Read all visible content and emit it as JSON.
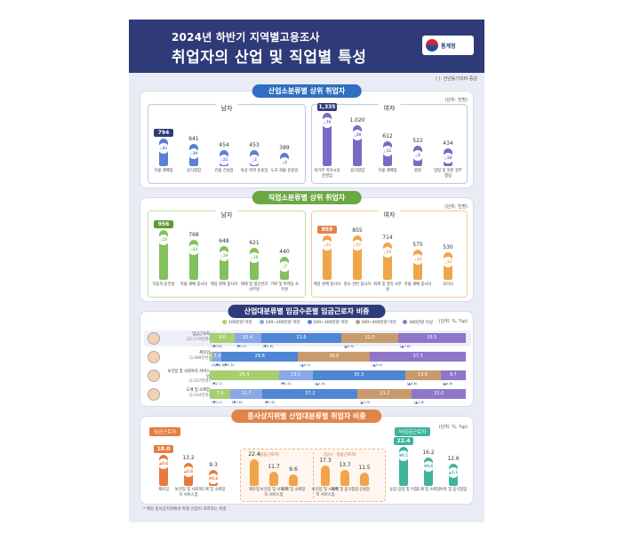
{
  "header": {
    "line1": "2024년 하반기 지역별고용조사",
    "line2": "취업자의 산업 및 직업별 특성",
    "logo_text": "통계청"
  },
  "note": "( ): 전년동기대비 증감",
  "colors": {
    "navy": "#2f3a78",
    "blue": "#5b7fd6",
    "purple": "#7a6ac4",
    "green": "#83c05e",
    "orange": "#f1a54a",
    "teal": "#3eb59a"
  },
  "industry": {
    "title": "산업소분류별 상위 취업자",
    "unit": "(단위: 천명)",
    "male": {
      "label": "남자",
      "items": [
        {
          "cat": "직물 제매업",
          "value": "794",
          "chg": "△41"
        },
        {
          "cat": "음식점업",
          "value": "641",
          "chg": "△30"
        },
        {
          "cat": "건물 건설업",
          "value": "454",
          "chg": "△22"
        },
        {
          "cat": "육상 여객 운송업",
          "value": "453",
          "chg": "△2"
        },
        {
          "cat": "도로 화물 운송업",
          "value": "389",
          "chg": "△3"
        }
      ]
    },
    "female": {
      "label": "여자",
      "items": [
        {
          "cat": "비거주 복지시설 운영업",
          "value": "1,335",
          "chg": "△70"
        },
        {
          "cat": "음식점업",
          "value": "1,020",
          "chg": "△30"
        },
        {
          "cat": "직물 제매업",
          "value": "612",
          "chg": "△11"
        },
        {
          "cat": "병원",
          "value": "522",
          "chg": "△5"
        },
        {
          "cat": "입법 및 일반 정부 행정",
          "value": "434",
          "chg": "△18"
        }
      ]
    },
    "chart_data": {
      "type": "bar",
      "series": [
        {
          "name": "남자",
          "categories": [
            "직물 제매업",
            "음식점업",
            "건물 건설업",
            "육상 여객 운송업",
            "도로 화물 운송업"
          ],
          "values": [
            794,
            641,
            454,
            453,
            389
          ]
        },
        {
          "name": "여자",
          "categories": [
            "비거주 복지시설 운영업",
            "음식점업",
            "직물 제매업",
            "병원",
            "입법 및 일반 정부 행정"
          ],
          "values": [
            1335,
            1020,
            612,
            522,
            434
          ]
        }
      ]
    }
  },
  "occupation": {
    "title": "직업소분류별 상위 취업자",
    "unit": "(단위: 천명)",
    "male": {
      "label": "남자",
      "items": [
        {
          "cat": "자동차 운전원",
          "value": "956",
          "chg": "△15"
        },
        {
          "cat": "작물 재배 종사자",
          "value": "768",
          "chg": "△43"
        },
        {
          "cat": "매장 판매 종사자",
          "value": "648",
          "chg": "△19"
        },
        {
          "cat": "제제 및 생산관리 사무원",
          "value": "621",
          "chg": "△18"
        },
        {
          "cat": "기획 및 마케팅 사무원",
          "value": "440",
          "chg": "△7"
        }
      ]
    },
    "female": {
      "label": "여자",
      "items": [
        {
          "cat": "매장 판매 종사자",
          "value": "859",
          "chg": "△21"
        },
        {
          "cat": "청소 관련 종사자",
          "value": "855",
          "chg": "△37"
        },
        {
          "cat": "회계 및 경리 사무원",
          "value": "714",
          "chg": "△25"
        },
        {
          "cat": "작물 재배 종사자",
          "value": "575",
          "chg": "△14"
        },
        {
          "cat": "조리사",
          "value": "530",
          "chg": "△12"
        }
      ]
    },
    "chart_data": {
      "type": "bar",
      "series": [
        {
          "name": "남자",
          "categories": [
            "자동차 운전원",
            "작물 재배 종사자",
            "매장 판매 종사자",
            "제제 및 생산관리 사무원",
            "기획 및 마케팅 사무원"
          ],
          "values": [
            956,
            768,
            648,
            621,
            440
          ]
        },
        {
          "name": "여자",
          "categories": [
            "매장 판매 종사자",
            "청소 관련 종사자",
            "회계 및 경리 사무원",
            "작물 재배 종사자",
            "조리사"
          ],
          "values": [
            859,
            855,
            714,
            575,
            530
          ]
        }
      ]
    }
  },
  "wage": {
    "title": "산업대분류별 임금수준별 임금근로자 비중",
    "unit": "(단위: %, %p)",
    "legend": [
      "100만원 미만",
      "100~200만원 미만",
      "200~300만원 미만",
      "300~400만원 미만",
      "400만원 이상"
    ],
    "legend_colors": [
      "#a6d06f",
      "#8aa7e6",
      "#4f86d4",
      "#c99b6c",
      "#8f76c9"
    ],
    "rows": [
      {
        "label": "임금근로자",
        "sub": "(22,170천명)",
        "values": [
          9.6,
          10.4,
          31.6,
          22.0,
          26.5
        ],
        "labels": [
          "9.6",
          "10.4",
          "31.6",
          "22.0",
          "26.5"
        ],
        "chg": [
          "(▼0.6)",
          "(▼1.1)",
          "(▼1.6)",
          "(▲0.5)",
          "(▲1.8)"
        ]
      },
      {
        "label": "제조업",
        "sub": "(3,988천명)",
        "values": [
          1.2,
          3.4,
          29.8,
          28.0,
          37.3
        ],
        "labels": [
          "1.2",
          "3.4",
          "29.8",
          "28.0",
          "37.3"
        ],
        "chg": [
          "(0.0)",
          "(▼1.2)",
          "(▼2.3)",
          "(▲0.2)",
          "(▲3.0)"
        ]
      },
      {
        "label": "보건업 및 사회복지 서비스업",
        "sub": "(2,937천명)",
        "values": [
          26.4,
          13.1,
          35.3,
          13.6,
          9.7
        ],
        "labels": [
          "26.4",
          "13.1",
          "35.3",
          "13.6",
          "9.7"
        ],
        "chg": [
          "(▼2.1)",
          "(▼1.4)",
          "(▲1.8)",
          "(▲0.8)",
          "(▲0.8)"
        ]
      },
      {
        "label": "도매 및 소매업",
        "sub": "(2,034천명)",
        "values": [
          7.9,
          12.7,
          37.2,
          21.2,
          21.0
        ],
        "labels": [
          "7.9",
          "12.7",
          "37.2",
          "21.2",
          "21.0"
        ],
        "chg": [
          "(▼0.1)",
          "(▼1.6)",
          "(▼1.8)",
          "(▲1.0)",
          "(▲1.6)"
        ]
      }
    ],
    "chart_data": {
      "type": "bar",
      "stacked": true,
      "categories": [
        "임금근로자",
        "제조업",
        "보건업 및 사회복지 서비스업",
        "도매 및 소매업"
      ],
      "series": [
        {
          "name": "100만원 미만",
          "values": [
            9.6,
            1.2,
            26.4,
            7.9
          ]
        },
        {
          "name": "100~200만원 미만",
          "values": [
            10.4,
            3.4,
            13.1,
            12.7
          ]
        },
        {
          "name": "200~300만원 미만",
          "values": [
            31.6,
            29.8,
            35.3,
            37.2
          ]
        },
        {
          "name": "300~400만원 미만",
          "values": [
            22.0,
            28.0,
            13.6,
            21.2
          ]
        },
        {
          "name": "400만원 이상",
          "values": [
            26.5,
            37.3,
            9.7,
            21.0
          ]
        }
      ]
    }
  },
  "status": {
    "title": "종사상지위별 산업대분류별 취업자 비중",
    "unit": "(단위: %, %p)",
    "wage_label": "임금근로자",
    "nonwage_label": "비임금근로자",
    "regular_label": "(상용근로자)",
    "temp_label": "(임시 · 일용근로자)",
    "wage_items": [
      {
        "cat": "제조업",
        "value": "18.0",
        "chg": "▲0.4"
      },
      {
        "cat": "보건업 및 사회복지 서비스업",
        "value": "13.2",
        "chg": "▲0.8"
      },
      {
        "cat": "도매 및 소매업",
        "value": "9.3",
        "chg": "▼0.4"
      }
    ],
    "regular_items": [
      {
        "cat": "제조업",
        "value": "22.4"
      },
      {
        "cat": "보건업 및 사회복지 서비스업",
        "value": "11.7"
      },
      {
        "cat": "도매 및 소매업",
        "value": "9.6"
      }
    ],
    "temp_items": [
      {
        "cat": "보건업 및 사회복지 서비스업",
        "value": "17.3"
      },
      {
        "cat": "숙박 및 음식점업",
        "value": "13.7"
      },
      {
        "cat": "건설업",
        "value": "11.5"
      }
    ],
    "nonwage_items": [
      {
        "cat": "농업 임업 및 어업",
        "value": "22.4",
        "chg": "▼0.1"
      },
      {
        "cat": "도매 및 소매업",
        "value": "16.2",
        "chg": "▼0.4"
      },
      {
        "cat": "숙박 및 음식점업",
        "value": "12.6",
        "chg": "▲1.1"
      }
    ],
    "chart_data": {
      "type": "bar",
      "series": [
        {
          "name": "임금근로자",
          "categories": [
            "제조업",
            "보건업 및 사회복지 서비스업",
            "도매 및 소매업"
          ],
          "values": [
            18.0,
            13.2,
            9.3
          ]
        },
        {
          "name": "(상용근로자)",
          "categories": [
            "제조업",
            "보건업 및 사회복지 서비스업",
            "도매 및 소매업"
          ],
          "values": [
            22.4,
            11.7,
            9.6
          ]
        },
        {
          "name": "(임시 · 일용근로자)",
          "categories": [
            "보건업 및 사회복지 서비스업",
            "숙박 및 음식점업",
            "건설업"
          ],
          "values": [
            17.3,
            13.7,
            11.5
          ]
        },
        {
          "name": "비임금근로자",
          "categories": [
            "농업 임업 및 어업",
            "도매 및 소매업",
            "숙박 및 음식점업"
          ],
          "values": [
            22.4,
            16.2,
            12.6
          ]
        }
      ]
    }
  },
  "footnote": "* 해당 종사상지위에서 특정 산업이 차지하는 비중"
}
